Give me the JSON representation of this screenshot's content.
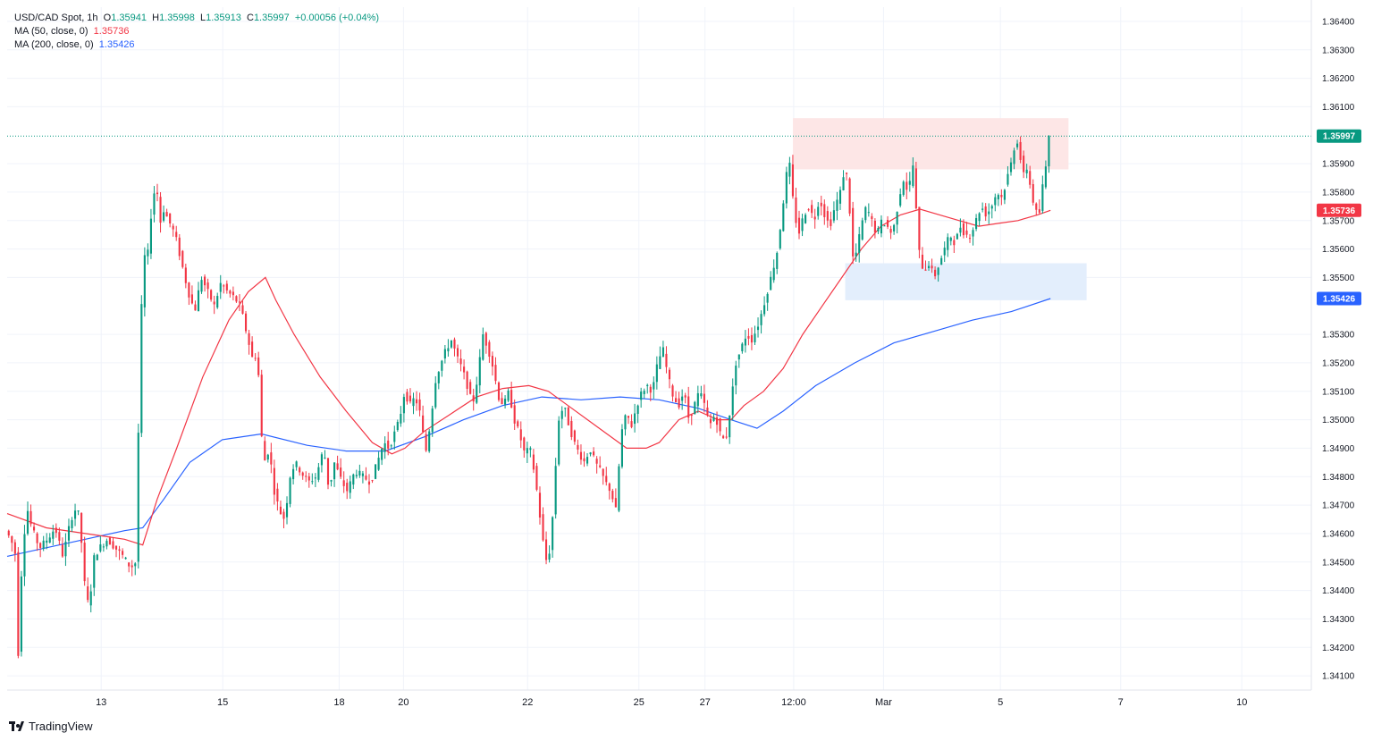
{
  "header": {
    "symbol": "USD/CAD Spot, 1h",
    "open_label": "O",
    "open": "1.35941",
    "high_label": "H",
    "high": "1.35998",
    "low_label": "L",
    "low": "1.35913",
    "close_label": "C",
    "close": "1.35997",
    "change": "+0.00056 (+0.04%)",
    "ma50_label": "MA (50, close, 0)",
    "ma50_value": "1.35736",
    "ma200_label": "MA (200, close, 0)",
    "ma200_value": "1.35426"
  },
  "branding": {
    "name": "TradingView"
  },
  "colors": {
    "up": "#089981",
    "down": "#f23645",
    "ma50": "#f23645",
    "ma200": "#2962ff",
    "resistance_zone": "#fde6e6",
    "support_zone": "#e3eefc",
    "last_price_tag": "#089981",
    "ma50_tag": "#f23645",
    "ma200_tag": "#2962ff"
  },
  "chart_data": {
    "type": "candlestick",
    "ylim": [
      1.3405,
      1.3645
    ],
    "y_ticks": [
      "1.36400",
      "1.36300",
      "1.36200",
      "1.36100",
      "1.35900",
      "1.35800",
      "1.35700",
      "1.35600",
      "1.35500",
      "1.35300",
      "1.35200",
      "1.35100",
      "1.35000",
      "1.34900",
      "1.34800",
      "1.34700",
      "1.34600",
      "1.34500",
      "1.34400",
      "1.34300",
      "1.34200",
      "1.34100"
    ],
    "x_ticks": [
      {
        "label": "13",
        "x": 0.0721
      },
      {
        "label": "15",
        "x": 0.1653
      },
      {
        "label": "18",
        "x": 0.2546
      },
      {
        "label": "20",
        "x": 0.3039
      },
      {
        "label": "22",
        "x": 0.3991
      },
      {
        "label": "25",
        "x": 0.4844
      },
      {
        "label": "27",
        "x": 0.5351
      },
      {
        "label": "12:00",
        "x": 0.6031
      },
      {
        "label": "Mar",
        "x": 0.672
      },
      {
        "label": "5",
        "x": 0.7616
      },
      {
        "label": "7",
        "x": 0.8538
      },
      {
        "label": "10",
        "x": 0.9467
      }
    ],
    "last_price": 1.35997,
    "last_price_label": "1.35997",
    "ma50_last": 1.35736,
    "ma50_last_label": "1.35736",
    "ma200_last": 1.35426,
    "ma200_last_label": "1.35426",
    "zones": [
      {
        "name": "resistance",
        "x_from": 0.6025,
        "x_to": 0.8138,
        "y_low": 1.3588,
        "y_high": 1.3606
      },
      {
        "name": "support",
        "x_from": 0.6426,
        "x_to": 0.8277,
        "y_low": 1.3542,
        "y_high": 1.3555
      }
    ],
    "price_path": [
      [
        0.0,
        1.3461
      ],
      [
        0.004,
        1.3458
      ],
      [
        0.008,
        1.3452
      ],
      [
        0.01,
        1.3412
      ],
      [
        0.012,
        1.3445
      ],
      [
        0.016,
        1.347
      ],
      [
        0.02,
        1.3462
      ],
      [
        0.026,
        1.3455
      ],
      [
        0.032,
        1.3458
      ],
      [
        0.038,
        1.3462
      ],
      [
        0.044,
        1.3452
      ],
      [
        0.05,
        1.3465
      ],
      [
        0.055,
        1.347
      ],
      [
        0.058,
        1.3458
      ],
      [
        0.061,
        1.344
      ],
      [
        0.064,
        1.3434
      ],
      [
        0.068,
        1.3452
      ],
      [
        0.072,
        1.3455
      ],
      [
        0.078,
        1.3458
      ],
      [
        0.084,
        1.3455
      ],
      [
        0.09,
        1.3452
      ],
      [
        0.096,
        1.3448
      ],
      [
        0.1,
        1.345
      ],
      [
        0.103,
        1.3525
      ],
      [
        0.106,
        1.356
      ],
      [
        0.108,
        1.3552
      ],
      [
        0.111,
        1.357
      ],
      [
        0.114,
        1.358
      ],
      [
        0.116,
        1.3582
      ],
      [
        0.118,
        1.3568
      ],
      [
        0.121,
        1.3574
      ],
      [
        0.125,
        1.357
      ],
      [
        0.13,
        1.3565
      ],
      [
        0.135,
        1.3555
      ],
      [
        0.14,
        1.3545
      ],
      [
        0.145,
        1.3538
      ],
      [
        0.15,
        1.355
      ],
      [
        0.155,
        1.3545
      ],
      [
        0.16,
        1.354
      ],
      [
        0.165,
        1.3548
      ],
      [
        0.17,
        1.3545
      ],
      [
        0.175,
        1.3543
      ],
      [
        0.18,
        1.354
      ],
      [
        0.185,
        1.353
      ],
      [
        0.19,
        1.352
      ],
      [
        0.193,
        1.3525
      ],
      [
        0.196,
        1.3495
      ],
      [
        0.199,
        1.3485
      ],
      [
        0.202,
        1.349
      ],
      [
        0.206,
        1.3475
      ],
      [
        0.21,
        1.3468
      ],
      [
        0.214,
        1.3465
      ],
      [
        0.218,
        1.348
      ],
      [
        0.222,
        1.3485
      ],
      [
        0.226,
        1.3482
      ],
      [
        0.232,
        1.3478
      ],
      [
        0.238,
        1.348
      ],
      [
        0.244,
        1.349
      ],
      [
        0.248,
        1.3475
      ],
      [
        0.252,
        1.3485
      ],
      [
        0.258,
        1.3478
      ],
      [
        0.262,
        1.3475
      ],
      [
        0.268,
        1.3482
      ],
      [
        0.274,
        1.348
      ],
      [
        0.28,
        1.3478
      ],
      [
        0.285,
        1.3485
      ],
      [
        0.29,
        1.3492
      ],
      [
        0.294,
        1.349
      ],
      [
        0.298,
        1.3495
      ],
      [
        0.302,
        1.35
      ],
      [
        0.306,
        1.351
      ],
      [
        0.31,
        1.3505
      ],
      [
        0.314,
        1.3508
      ],
      [
        0.318,
        1.3502
      ],
      [
        0.322,
        1.3488
      ],
      [
        0.326,
        1.35
      ],
      [
        0.33,
        1.3515
      ],
      [
        0.334,
        1.352
      ],
      [
        0.338,
        1.3525
      ],
      [
        0.342,
        1.3528
      ],
      [
        0.346,
        1.3522
      ],
      [
        0.35,
        1.3518
      ],
      [
        0.354,
        1.3512
      ],
      [
        0.358,
        1.3505
      ],
      [
        0.362,
        1.3515
      ],
      [
        0.366,
        1.353
      ],
      [
        0.37,
        1.3525
      ],
      [
        0.374,
        1.3518
      ],
      [
        0.378,
        1.3508
      ],
      [
        0.382,
        1.3505
      ],
      [
        0.386,
        1.351
      ],
      [
        0.39,
        1.35
      ],
      [
        0.394,
        1.3495
      ],
      [
        0.398,
        1.3488
      ],
      [
        0.402,
        1.349
      ],
      [
        0.406,
        1.348
      ],
      [
        0.41,
        1.3465
      ],
      [
        0.414,
        1.345
      ],
      [
        0.418,
        1.3455
      ],
      [
        0.421,
        1.3478
      ],
      [
        0.424,
        1.35
      ],
      [
        0.428,
        1.3505
      ],
      [
        0.432,
        1.3498
      ],
      [
        0.436,
        1.3492
      ],
      [
        0.44,
        1.3488
      ],
      [
        0.444,
        1.3485
      ],
      [
        0.448,
        1.349
      ],
      [
        0.452,
        1.3485
      ],
      [
        0.456,
        1.3482
      ],
      [
        0.46,
        1.3478
      ],
      [
        0.464,
        1.3475
      ],
      [
        0.468,
        1.3468
      ],
      [
        0.472,
        1.3495
      ],
      [
        0.476,
        1.3502
      ],
      [
        0.48,
        1.3498
      ],
      [
        0.484,
        1.3505
      ],
      [
        0.488,
        1.351
      ],
      [
        0.492,
        1.3512
      ],
      [
        0.496,
        1.351
      ],
      [
        0.5,
        1.352
      ],
      [
        0.504,
        1.3525
      ],
      [
        0.508,
        1.3515
      ],
      [
        0.512,
        1.3508
      ],
      [
        0.516,
        1.3505
      ],
      [
        0.52,
        1.351
      ],
      [
        0.524,
        1.35
      ],
      [
        0.528,
        1.3505
      ],
      [
        0.532,
        1.351
      ],
      [
        0.536,
        1.3505
      ],
      [
        0.54,
        1.3498
      ],
      [
        0.544,
        1.3502
      ],
      [
        0.548,
        1.3495
      ],
      [
        0.552,
        1.3492
      ],
      [
        0.556,
        1.3505
      ],
      [
        0.56,
        1.352
      ],
      [
        0.564,
        1.3525
      ],
      [
        0.568,
        1.353
      ],
      [
        0.572,
        1.3528
      ],
      [
        0.576,
        1.3532
      ],
      [
        0.58,
        1.3538
      ],
      [
        0.584,
        1.3545
      ],
      [
        0.588,
        1.3552
      ],
      [
        0.592,
        1.356
      ],
      [
        0.596,
        1.3575
      ],
      [
        0.598,
        1.3585
      ],
      [
        0.6,
        1.3588
      ],
      [
        0.602,
        1.359
      ],
      [
        0.604,
        1.3575
      ],
      [
        0.608,
        1.3565
      ],
      [
        0.612,
        1.3572
      ],
      [
        0.616,
        1.3575
      ],
      [
        0.62,
        1.357
      ],
      [
        0.624,
        1.3578
      ],
      [
        0.628,
        1.3572
      ],
      [
        0.632,
        1.3568
      ],
      [
        0.636,
        1.3575
      ],
      [
        0.64,
        1.358
      ],
      [
        0.644,
        1.359
      ],
      [
        0.647,
        1.3575
      ],
      [
        0.65,
        1.3555
      ],
      [
        0.653,
        1.356
      ],
      [
        0.656,
        1.3568
      ],
      [
        0.66,
        1.3575
      ],
      [
        0.664,
        1.357
      ],
      [
        0.668,
        1.3565
      ],
      [
        0.672,
        1.357
      ],
      [
        0.676,
        1.3568
      ],
      [
        0.68,
        1.3565
      ],
      [
        0.684,
        1.3575
      ],
      [
        0.688,
        1.3585
      ],
      [
        0.692,
        1.358
      ],
      [
        0.696,
        1.359
      ],
      [
        0.698,
        1.3575
      ],
      [
        0.7,
        1.356
      ],
      [
        0.704,
        1.3552
      ],
      [
        0.708,
        1.3555
      ],
      [
        0.712,
        1.355
      ],
      [
        0.716,
        1.3555
      ],
      [
        0.72,
        1.356
      ],
      [
        0.724,
        1.3565
      ],
      [
        0.728,
        1.3562
      ],
      [
        0.732,
        1.3568
      ],
      [
        0.736,
        1.3565
      ],
      [
        0.74,
        1.3565
      ],
      [
        0.744,
        1.357
      ],
      [
        0.748,
        1.3575
      ],
      [
        0.752,
        1.3572
      ],
      [
        0.756,
        1.3575
      ],
      [
        0.76,
        1.358
      ],
      [
        0.764,
        1.3578
      ],
      [
        0.768,
        1.3585
      ],
      [
        0.772,
        1.3592
      ],
      [
        0.775,
        1.36
      ],
      [
        0.778,
        1.3592
      ],
      [
        0.781,
        1.3585
      ],
      [
        0.784,
        1.359
      ],
      [
        0.786,
        1.358
      ],
      [
        0.789,
        1.3575
      ],
      [
        0.792,
        1.357
      ],
      [
        0.794,
        1.3578
      ],
      [
        0.796,
        1.3585
      ],
      [
        0.798,
        1.359
      ],
      [
        0.8,
        1.35997
      ]
    ],
    "ma50_path": [
      [
        0.0,
        1.3467
      ],
      [
        0.03,
        1.3462
      ],
      [
        0.06,
        1.346
      ],
      [
        0.09,
        1.3458
      ],
      [
        0.104,
        1.3456
      ],
      [
        0.115,
        1.3472
      ],
      [
        0.13,
        1.349
      ],
      [
        0.15,
        1.3515
      ],
      [
        0.17,
        1.3535
      ],
      [
        0.185,
        1.3545
      ],
      [
        0.198,
        1.355
      ],
      [
        0.206,
        1.3542
      ],
      [
        0.22,
        1.353
      ],
      [
        0.24,
        1.3515
      ],
      [
        0.26,
        1.3503
      ],
      [
        0.28,
        1.3492
      ],
      [
        0.295,
        1.3488
      ],
      [
        0.305,
        1.349
      ],
      [
        0.32,
        1.3496
      ],
      [
        0.34,
        1.3502
      ],
      [
        0.36,
        1.3508
      ],
      [
        0.38,
        1.3511
      ],
      [
        0.4,
        1.3512
      ],
      [
        0.415,
        1.351
      ],
      [
        0.43,
        1.3505
      ],
      [
        0.445,
        1.35
      ],
      [
        0.46,
        1.3495
      ],
      [
        0.475,
        1.349
      ],
      [
        0.49,
        1.349
      ],
      [
        0.5,
        1.3492
      ],
      [
        0.515,
        1.35
      ],
      [
        0.53,
        1.3503
      ],
      [
        0.545,
        1.35
      ],
      [
        0.555,
        1.35
      ],
      [
        0.565,
        1.3505
      ],
      [
        0.58,
        1.351
      ],
      [
        0.595,
        1.3518
      ],
      [
        0.61,
        1.353
      ],
      [
        0.625,
        1.354
      ],
      [
        0.64,
        1.355
      ],
      [
        0.655,
        1.356
      ],
      [
        0.67,
        1.3568
      ],
      [
        0.685,
        1.3572
      ],
      [
        0.7,
        1.3574
      ],
      [
        0.715,
        1.3572
      ],
      [
        0.73,
        1.357
      ],
      [
        0.745,
        1.3568
      ],
      [
        0.76,
        1.3569
      ],
      [
        0.775,
        1.357
      ],
      [
        0.79,
        1.3572
      ],
      [
        0.8,
        1.35736
      ]
    ],
    "ma200_path": [
      [
        0.0,
        1.3452
      ],
      [
        0.03,
        1.3455
      ],
      [
        0.06,
        1.3458
      ],
      [
        0.09,
        1.3461
      ],
      [
        0.104,
        1.3462
      ],
      [
        0.12,
        1.3472
      ],
      [
        0.14,
        1.3485
      ],
      [
        0.165,
        1.3493
      ],
      [
        0.195,
        1.3495
      ],
      [
        0.23,
        1.3491
      ],
      [
        0.26,
        1.3489
      ],
      [
        0.29,
        1.3489
      ],
      [
        0.32,
        1.3494
      ],
      [
        0.35,
        1.35
      ],
      [
        0.38,
        1.3505
      ],
      [
        0.41,
        1.3508
      ],
      [
        0.44,
        1.3507
      ],
      [
        0.47,
        1.3508
      ],
      [
        0.5,
        1.3507
      ],
      [
        0.53,
        1.3504
      ],
      [
        0.555,
        1.35
      ],
      [
        0.575,
        1.3497
      ],
      [
        0.595,
        1.3503
      ],
      [
        0.62,
        1.3512
      ],
      [
        0.65,
        1.352
      ],
      [
        0.68,
        1.3527
      ],
      [
        0.71,
        1.3531
      ],
      [
        0.74,
        1.3535
      ],
      [
        0.77,
        1.3538
      ],
      [
        0.8,
        1.35426
      ]
    ]
  }
}
